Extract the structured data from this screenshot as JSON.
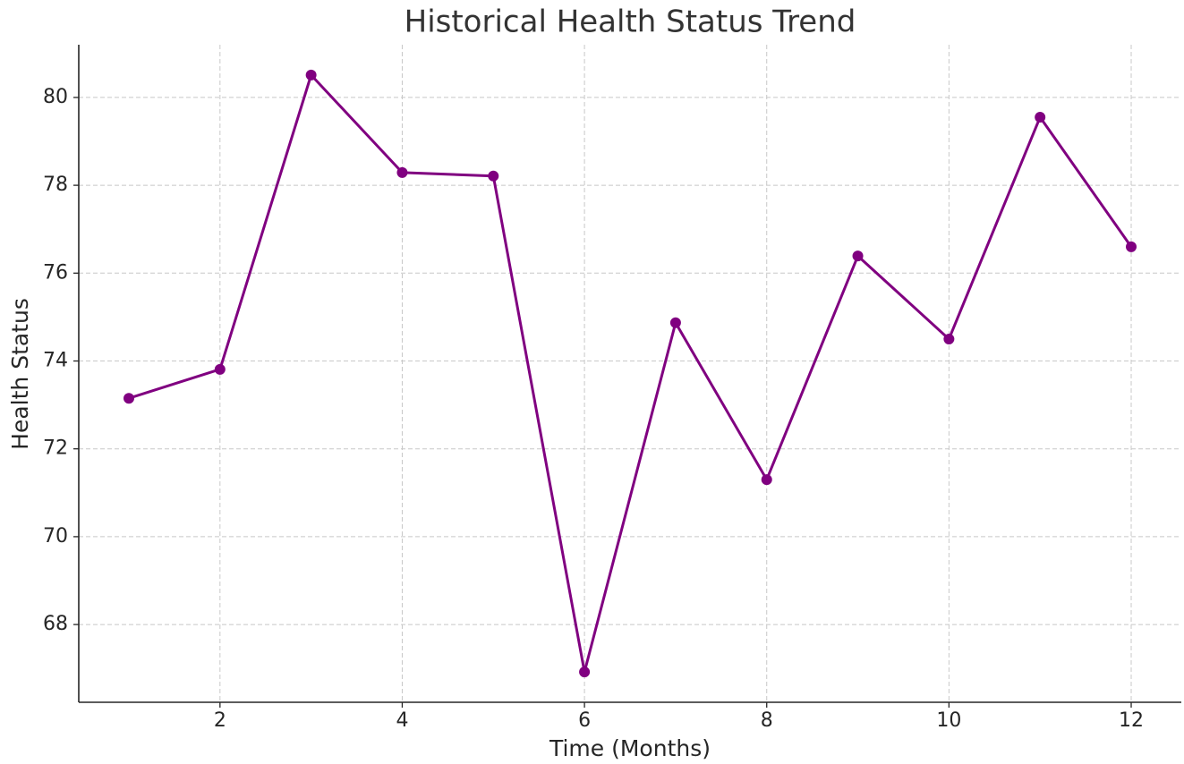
{
  "chart_data": {
    "type": "line",
    "title": "Historical Health Status Trend",
    "xlabel": "Time (Months)",
    "ylabel": "Health Status",
    "x": [
      1,
      2,
      3,
      4,
      5,
      6,
      7,
      8,
      9,
      10,
      11,
      12
    ],
    "series": [
      {
        "name": "Health Status",
        "color": "#800080",
        "values": [
          73.15,
          73.81,
          80.51,
          78.29,
          78.21,
          66.92,
          74.87,
          71.3,
          76.39,
          74.5,
          79.55,
          76.6
        ]
      }
    ],
    "xlim": [
      0.45,
      12.55
    ],
    "ylim": [
      66.23,
      81.2
    ],
    "xticks": [
      2,
      4,
      6,
      8,
      10,
      12
    ],
    "yticks": [
      68,
      70,
      72,
      74,
      76,
      78,
      80
    ],
    "grid": true
  }
}
